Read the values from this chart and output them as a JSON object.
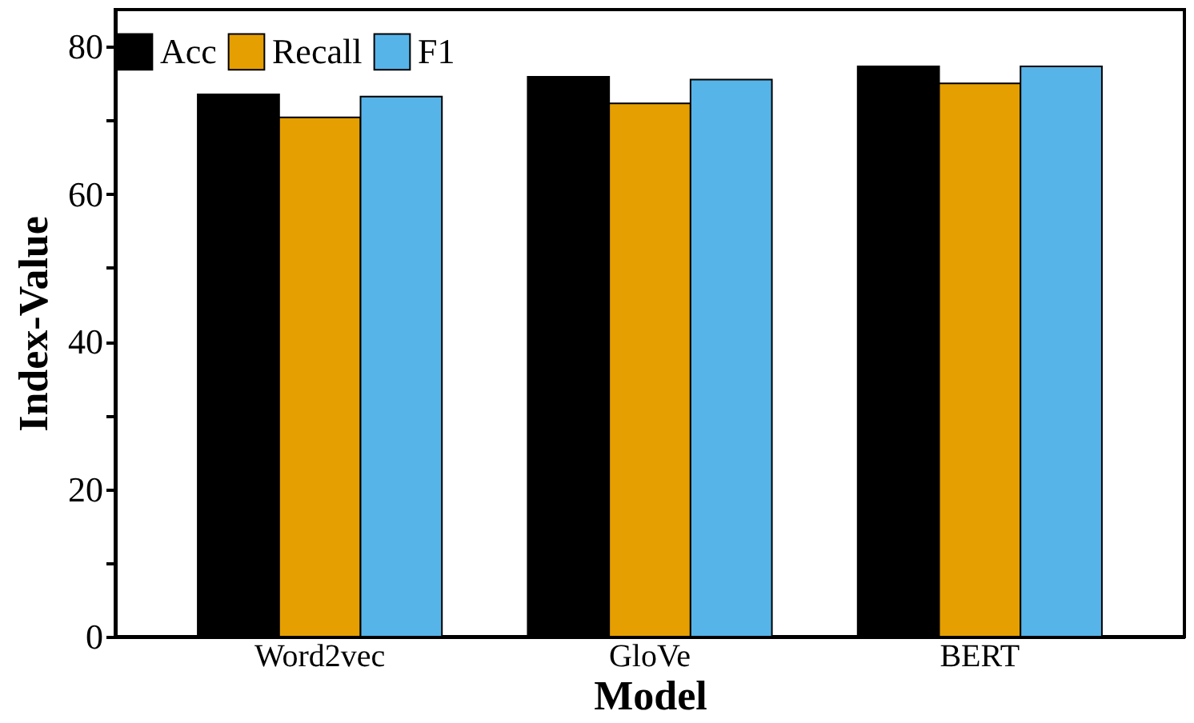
{
  "chart_data": {
    "type": "bar",
    "xlabel": "Model",
    "ylabel": "Index-Value",
    "categories": [
      "Word2vec",
      "GloVe",
      "BERT"
    ],
    "series": [
      {
        "name": "Acc",
        "color": "#000000",
        "values": [
          73.5,
          75.9,
          77.3
        ]
      },
      {
        "name": "Recall",
        "color": "#e69f00",
        "values": [
          70.4,
          72.3,
          75.0
        ]
      },
      {
        "name": "F1",
        "color": "#56b4e9",
        "values": [
          73.2,
          75.5,
          77.3
        ]
      }
    ],
    "ylim": [
      0,
      85
    ],
    "yticks": [
      0,
      {
        "value": 10,
        "label": null
      },
      20,
      {
        "value": 30,
        "label": null
      },
      40,
      {
        "value": 50,
        "label": null
      },
      60,
      {
        "value": 70,
        "label": null
      },
      80
    ],
    "legend": "top",
    "grid": false
  }
}
